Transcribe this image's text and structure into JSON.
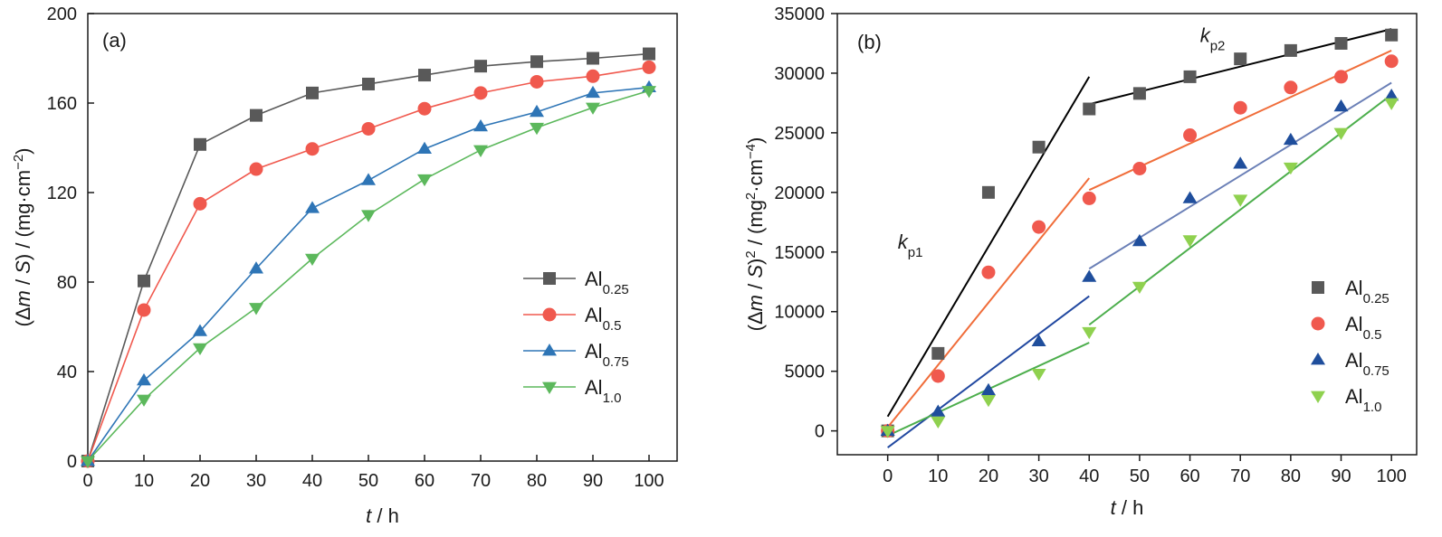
{
  "chart_data": [
    {
      "panel": "(a)",
      "type": "line",
      "xlabel": {
        "var": "t",
        "rest": " / h"
      },
      "ylabel": {
        "open": "(Δ",
        "m": "m",
        "mid": " / ",
        "s": "S",
        "close": ") / (mg·cm",
        "sup": "−2",
        "end": ")"
      },
      "xlim": [
        0,
        105
      ],
      "ylim": [
        0,
        200
      ],
      "xticks": [
        0,
        10,
        20,
        30,
        40,
        50,
        60,
        70,
        80,
        90,
        100
      ],
      "yticks": [
        0,
        40,
        80,
        120,
        160,
        200
      ],
      "x": [
        0,
        10,
        20,
        30,
        40,
        50,
        60,
        70,
        80,
        90,
        100
      ],
      "legend_position": "bottom-right",
      "series": [
        {
          "name": "Al",
          "sub": "0.25",
          "color": "#595959",
          "marker": "square",
          "values": [
            0,
            80.5,
            141.5,
            154.5,
            164.5,
            168.5,
            172.5,
            176.5,
            178.5,
            180,
            182
          ]
        },
        {
          "name": "Al",
          "sub": "0.5",
          "color": "#f0594e",
          "marker": "circle",
          "values": [
            0,
            67.5,
            115,
            130.5,
            139.5,
            148.5,
            157.5,
            164.5,
            169.5,
            172,
            176
          ]
        },
        {
          "name": "Al",
          "sub": "0.75",
          "color": "#2e75b6",
          "marker": "triangle-up",
          "values": [
            0,
            36,
            58,
            86,
            113,
            125.5,
            139.5,
            149.5,
            156,
            164.5,
            167
          ]
        },
        {
          "name": "Al",
          "sub": "1.0",
          "color": "#5cb85c",
          "marker": "triangle-down",
          "values": [
            0,
            27.5,
            50.5,
            68.5,
            90.5,
            110,
            126,
            139,
            149,
            158,
            165.5
          ]
        }
      ]
    },
    {
      "panel": "(b)",
      "type": "scatter",
      "xlabel": {
        "var": "t",
        "rest": " / h"
      },
      "ylabel": {
        "open": "(Δ",
        "m": "m",
        "mid": " / ",
        "s": "S",
        "close": ")",
        "sup1": "2",
        "mid2": " / (mg",
        "sup2": "2",
        "mid3": "·cm",
        "sup3": "−4",
        "end": ")"
      },
      "xlim": [
        -10,
        105
      ],
      "ylim": [
        -2000,
        35000
      ],
      "xticks": [
        0,
        10,
        20,
        30,
        40,
        50,
        60,
        70,
        80,
        90,
        100
      ],
      "yticks": [
        0,
        5000,
        10000,
        15000,
        20000,
        25000,
        30000,
        35000
      ],
      "x": [
        0,
        10,
        20,
        30,
        40,
        50,
        60,
        70,
        80,
        90,
        100
      ],
      "legend_position": "bottom-right",
      "annotations": [
        {
          "base": "k",
          "sub": "p1",
          "x": 2,
          "y": 15300
        },
        {
          "base": "k",
          "sub": "p2",
          "x": 62,
          "y": 32600
        }
      ],
      "series": [
        {
          "name": "Al",
          "sub": "0.25",
          "color": "#595959",
          "marker": "square",
          "values": [
            0,
            6500,
            20000,
            23800,
            27000,
            28300,
            29700,
            31200,
            31900,
            32500,
            33200
          ],
          "fits": [
            {
              "x": [
                0,
                40
              ],
              "y": [
                1200,
                29700
              ],
              "color": "#000000"
            },
            {
              "x": [
                40,
                100
              ],
              "y": [
                27400,
                33700
              ],
              "color": "#000000"
            }
          ]
        },
        {
          "name": "Al",
          "sub": "0.5",
          "color": "#f0594e",
          "marker": "circle",
          "values": [
            0,
            4600,
            13300,
            17100,
            19500,
            22000,
            24800,
            27100,
            28800,
            29700,
            31000
          ],
          "fits": [
            {
              "x": [
                0,
                40
              ],
              "y": [
                300,
                21200
              ],
              "color": "#f06d3a"
            },
            {
              "x": [
                40,
                100
              ],
              "y": [
                20200,
                31900
              ],
              "color": "#f06d3a"
            }
          ]
        },
        {
          "name": "Al",
          "sub": "0.75",
          "color": "#1f4e9c",
          "marker": "triangle-up",
          "values": [
            0,
            1600,
            3400,
            7500,
            12900,
            15900,
            19500,
            22400,
            24400,
            27200,
            28100
          ],
          "fits": [
            {
              "x": [
                0,
                40
              ],
              "y": [
                -1400,
                11300
              ],
              "color": "#2148a0"
            },
            {
              "x": [
                40,
                100
              ],
              "y": [
                13600,
                29200
              ],
              "color": "#6a7fb6"
            }
          ]
        },
        {
          "name": "Al",
          "sub": "1.0",
          "color": "#8fd14f",
          "marker": "triangle-down",
          "values": [
            0,
            800,
            2600,
            4800,
            8300,
            12100,
            16000,
            19400,
            22100,
            25000,
            27500
          ],
          "fits": [
            {
              "x": [
                0,
                40
              ],
              "y": [
                -400,
                7400
              ],
              "color": "#4cae4c"
            },
            {
              "x": [
                40,
                100
              ],
              "y": [
                8900,
                28200
              ],
              "color": "#4cae4c"
            }
          ]
        }
      ]
    }
  ]
}
